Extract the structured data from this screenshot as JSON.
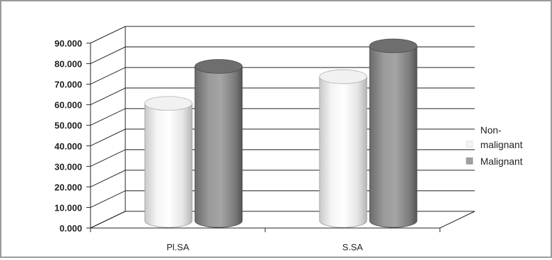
{
  "chart_data": {
    "type": "bar",
    "categories": [
      "Pl.SA",
      "S.SA"
    ],
    "series": [
      {
        "name": "Non-malignant",
        "values": [
          57.0,
          70.0
        ],
        "color": "#ffffff"
      },
      {
        "name": "Malignant",
        "values": [
          75.0,
          85.0
        ],
        "color": "#8f8f8f"
      }
    ],
    "ylim": [
      0,
      90
    ],
    "yticks": [
      "0.000",
      "10.000",
      "20.000",
      "30.000",
      "40.000",
      "50.000",
      "60.000",
      "70.000",
      "80.000",
      "90.000"
    ],
    "grid": true,
    "legend_position": "right",
    "legend_lines": [
      [
        "Non-",
        "malignant"
      ],
      [
        "Malignant"
      ]
    ]
  }
}
